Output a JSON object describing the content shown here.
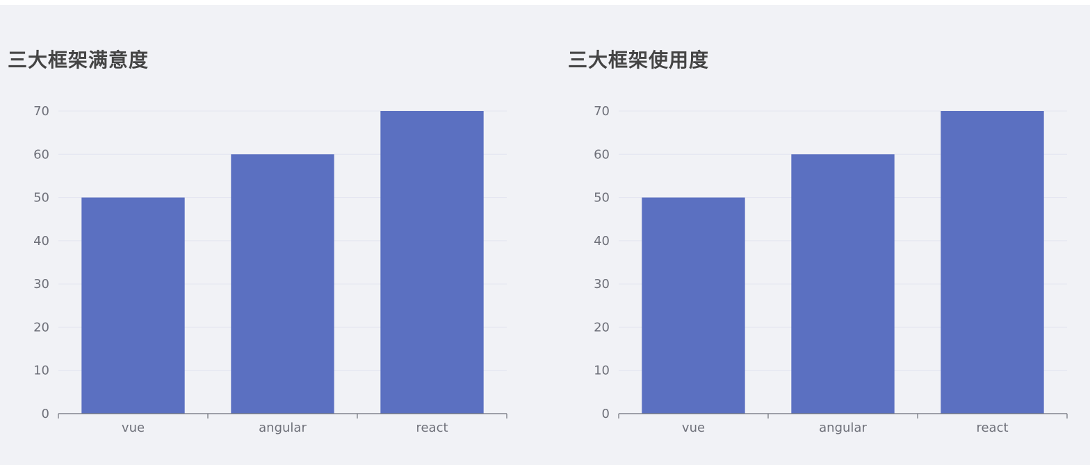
{
  "chart_data": [
    {
      "type": "bar",
      "title": "三大框架满意度",
      "categories": [
        "vue",
        "angular",
        "react"
      ],
      "values": [
        50,
        60,
        70
      ],
      "ylim": [
        0,
        70
      ],
      "yticks": [
        0,
        10,
        20,
        30,
        40,
        50,
        60,
        70
      ],
      "xlabel": "",
      "ylabel": "",
      "grid": true,
      "bar_color": "#5b70c1",
      "grid_color": "#e3e5f0",
      "axis_color": "#6e7079",
      "title_color": "#444444",
      "background_color": "#f1f2f6"
    },
    {
      "type": "bar",
      "title": "三大框架使用度",
      "categories": [
        "vue",
        "angular",
        "react"
      ],
      "values": [
        50,
        60,
        70
      ],
      "ylim": [
        0,
        70
      ],
      "yticks": [
        0,
        10,
        20,
        30,
        40,
        50,
        60,
        70
      ],
      "xlabel": "",
      "ylabel": "",
      "grid": true,
      "bar_color": "#5b70c1",
      "grid_color": "#e3e5f0",
      "axis_color": "#6e7079",
      "title_color": "#444444",
      "background_color": "#f1f2f6"
    }
  ]
}
